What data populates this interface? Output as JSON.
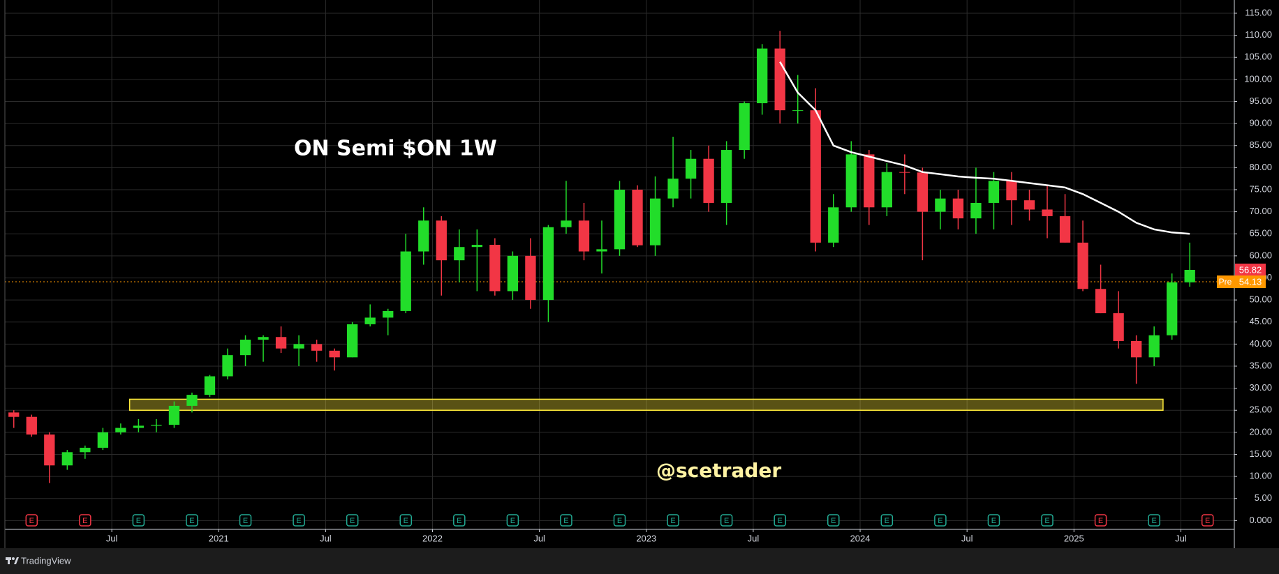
{
  "chart_data": {
    "type": "candlestick",
    "title": "ON Semi $ON 1W",
    "watermark": "@scetrader",
    "brand": "TradingView",
    "x": [
      "2020-01",
      "2020-02",
      "2020-03",
      "2020-04",
      "2020-05",
      "2020-06",
      "2020-07",
      "2020-08",
      "2020-09",
      "2020-10",
      "2020-11",
      "2020-12",
      "2021-01",
      "2021-02",
      "2021-03",
      "2021-04",
      "2021-05",
      "2021-06",
      "2021-07",
      "2021-08",
      "2021-09",
      "2021-10",
      "2021-11",
      "2021-12",
      "2022-01",
      "2022-02",
      "2022-03",
      "2022-04",
      "2022-05",
      "2022-06",
      "2022-07",
      "2022-08",
      "2022-09",
      "2022-10",
      "2022-11",
      "2022-12",
      "2023-01",
      "2023-02",
      "2023-03",
      "2023-04",
      "2023-05",
      "2023-06",
      "2023-07",
      "2023-08",
      "2023-09",
      "2023-10",
      "2023-11",
      "2023-12",
      "2024-01",
      "2024-02",
      "2024-03",
      "2024-04",
      "2024-05",
      "2024-06",
      "2024-07",
      "2024-08",
      "2024-09",
      "2024-10",
      "2024-11",
      "2024-12",
      "2025-01",
      "2025-02",
      "2025-03",
      "2025-04",
      "2025-05",
      "2025-06",
      "2025-07"
    ],
    "open": [
      24.5,
      23.5,
      19.5,
      12.5,
      15.5,
      16.5,
      20,
      21,
      21.5,
      21.7,
      26,
      28.5,
      32.7,
      37.5,
      41,
      41.6,
      39,
      40,
      38.5,
      37,
      44.5,
      46,
      47.5,
      61,
      68,
      59,
      62,
      62.5,
      52,
      60,
      50,
      66.5,
      68,
      61,
      61.5,
      75,
      62.4,
      73,
      77.5,
      82,
      72,
      84,
      94.6,
      107,
      93,
      93,
      63,
      71,
      83,
      71,
      79,
      78.9,
      70,
      73,
      68.5,
      72,
      77,
      72.6,
      70.5,
      69,
      63,
      52.5,
      47,
      40.7,
      37,
      42,
      54
    ],
    "high": [
      25,
      24,
      20,
      16,
      17,
      21,
      22,
      23,
      23,
      27,
      29,
      33,
      39,
      42,
      42,
      44,
      42,
      41,
      39,
      45,
      49,
      48,
      65,
      71,
      69,
      66,
      66,
      64,
      61,
      64,
      67,
      77,
      72,
      68,
      77,
      76,
      78,
      87,
      84,
      85,
      86,
      95,
      108,
      111,
      101,
      98,
      74,
      86,
      84,
      81,
      83,
      80,
      75,
      75,
      80,
      79,
      79,
      75,
      76,
      74,
      68,
      58,
      52,
      42,
      44,
      56,
      63
    ],
    "low": [
      21,
      19,
      8.5,
      11.5,
      14,
      16,
      19.5,
      20,
      20,
      21,
      24.5,
      28,
      32,
      35,
      36,
      38,
      35,
      36,
      34,
      37,
      44,
      42,
      47,
      58,
      51,
      54,
      52,
      51,
      50,
      48,
      45,
      65,
      59,
      56,
      60,
      62,
      60,
      71,
      73,
      70,
      67,
      82,
      92,
      90,
      90,
      61,
      62,
      70,
      67,
      69,
      74,
      59,
      66,
      66,
      65,
      66,
      67,
      68,
      64,
      63,
      52,
      47,
      39,
      31,
      35,
      41,
      53
    ],
    "close": [
      23.5,
      19.5,
      12.5,
      15.5,
      16.5,
      20,
      21,
      21.5,
      21.7,
      26,
      28.5,
      32.7,
      37.5,
      41,
      41.6,
      39,
      40,
      38.5,
      37,
      44.5,
      46,
      47.5,
      61,
      68,
      59,
      62,
      62.5,
      52,
      60,
      50,
      66.5,
      68,
      61,
      61.5,
      75,
      62.4,
      73,
      77.5,
      82,
      72,
      84,
      94.6,
      107,
      93,
      93,
      63,
      71,
      83,
      71,
      79,
      78.9,
      70,
      73,
      68.5,
      72,
      77,
      72.6,
      70.5,
      69,
      63,
      52.5,
      47,
      40.7,
      37,
      42,
      54,
      56.82
    ],
    "up_color": "#22dd2a",
    "down_color": "#f23645",
    "xlim": [
      "2020-01",
      "2025-10"
    ],
    "xticks": [
      {
        "value": "2020-07",
        "label": "Jul"
      },
      {
        "value": "2021-01",
        "label": "2021"
      },
      {
        "value": "2021-07",
        "label": "Jul"
      },
      {
        "value": "2022-01",
        "label": "2022"
      },
      {
        "value": "2022-07",
        "label": "Jul"
      },
      {
        "value": "2023-01",
        "label": "2023"
      },
      {
        "value": "2023-07",
        "label": "Jul"
      },
      {
        "value": "2024-01",
        "label": "2024"
      },
      {
        "value": "2024-07",
        "label": "Jul"
      },
      {
        "value": "2025-01",
        "label": "2025"
      },
      {
        "value": "2025-07",
        "label": "Jul"
      }
    ],
    "ylim": [
      -2,
      118
    ],
    "yticks": [
      {
        "value": 0,
        "label": "0.000"
      },
      {
        "value": 5,
        "label": "5.00"
      },
      {
        "value": 10,
        "label": "10.00"
      },
      {
        "value": 15,
        "label": "15.00"
      },
      {
        "value": 20,
        "label": "20.00"
      },
      {
        "value": 25,
        "label": "25.00"
      },
      {
        "value": 30,
        "label": "30.00"
      },
      {
        "value": 35,
        "label": "35.00"
      },
      {
        "value": 40,
        "label": "40.00"
      },
      {
        "value": 45,
        "label": "45.00"
      },
      {
        "value": 50,
        "label": "50.00"
      },
      {
        "value": 55,
        "label": "55.00"
      },
      {
        "value": 60,
        "label": "60.00"
      },
      {
        "value": 65,
        "label": "65.00"
      },
      {
        "value": 70,
        "label": "70.00"
      },
      {
        "value": 75,
        "label": "75.00"
      },
      {
        "value": 80,
        "label": "80.00"
      },
      {
        "value": 85,
        "label": "85.00"
      },
      {
        "value": 90,
        "label": "90.00"
      },
      {
        "value": 95,
        "label": "95.00"
      },
      {
        "value": 100,
        "label": "100.00"
      },
      {
        "value": 105,
        "label": "105.00"
      },
      {
        "value": 110,
        "label": "110.00"
      },
      {
        "value": 115,
        "label": "115.00"
      }
    ],
    "grid": true,
    "moving_average": {
      "color": "#ffffff",
      "x": [
        "2023-08",
        "2023-09",
        "2023-10",
        "2023-11",
        "2023-12",
        "2024-01",
        "2024-02",
        "2024-03",
        "2024-04",
        "2024-05",
        "2024-06",
        "2024-07",
        "2024-08",
        "2024-09",
        "2024-10",
        "2024-11",
        "2024-12",
        "2025-01",
        "2025-02",
        "2025-03",
        "2025-04",
        "2025-05",
        "2025-06",
        "2025-07"
      ],
      "values": [
        104,
        97,
        93,
        85,
        83.5,
        82.5,
        81.5,
        80.5,
        79,
        78.5,
        78,
        77.7,
        77.5,
        77,
        76.5,
        76,
        75.5,
        74,
        72,
        70,
        67.5,
        66,
        65.3,
        65
      ]
    },
    "zone": {
      "color": "#ffeb3b",
      "xlim": [
        "2020-08",
        "2025-06"
      ],
      "ylim": [
        25,
        27.5
      ]
    },
    "last_price": {
      "value": 56.82,
      "color": "#f23645"
    },
    "pre_market": {
      "label": "Pre",
      "value": 54.13,
      "color": "#ff9800"
    },
    "earnings": {
      "label": "E",
      "events": [
        {
          "x": "2020-02",
          "color": "#f23645"
        },
        {
          "x": "2020-05",
          "color": "#f23645"
        },
        {
          "x": "2020-08",
          "color": "#22ab94"
        },
        {
          "x": "2020-11",
          "color": "#22ab94"
        },
        {
          "x": "2021-02",
          "color": "#22ab94"
        },
        {
          "x": "2021-05",
          "color": "#22ab94"
        },
        {
          "x": "2021-08",
          "color": "#22ab94"
        },
        {
          "x": "2021-11",
          "color": "#22ab94"
        },
        {
          "x": "2022-02",
          "color": "#22ab94"
        },
        {
          "x": "2022-05",
          "color": "#22ab94"
        },
        {
          "x": "2022-08",
          "color": "#22ab94"
        },
        {
          "x": "2022-11",
          "color": "#22ab94"
        },
        {
          "x": "2023-02",
          "color": "#22ab94"
        },
        {
          "x": "2023-05",
          "color": "#22ab94"
        },
        {
          "x": "2023-08",
          "color": "#22ab94"
        },
        {
          "x": "2023-11",
          "color": "#22ab94"
        },
        {
          "x": "2024-02",
          "color": "#22ab94"
        },
        {
          "x": "2024-05",
          "color": "#22ab94"
        },
        {
          "x": "2024-08",
          "color": "#22ab94"
        },
        {
          "x": "2024-11",
          "color": "#22ab94"
        },
        {
          "x": "2025-02",
          "color": "#f23645"
        },
        {
          "x": "2025-05",
          "color": "#22ab94"
        },
        {
          "x": "2025-08",
          "color": "#f23645"
        }
      ]
    }
  }
}
